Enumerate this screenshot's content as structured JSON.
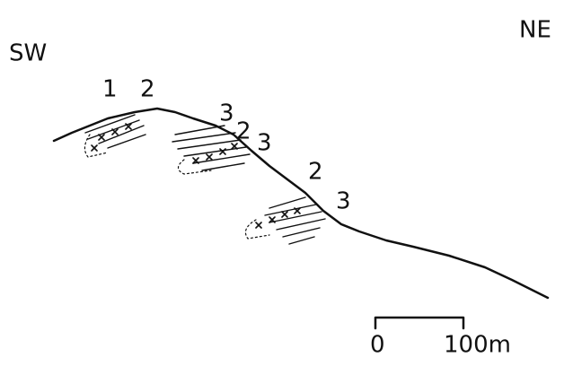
{
  "orientation": {
    "left": "SW",
    "right": "NE"
  },
  "labels": [
    "1",
    "2",
    "3",
    "2",
    "3",
    "2",
    "3"
  ],
  "scale_bar": {
    "start": "0",
    "end": "100m"
  }
}
